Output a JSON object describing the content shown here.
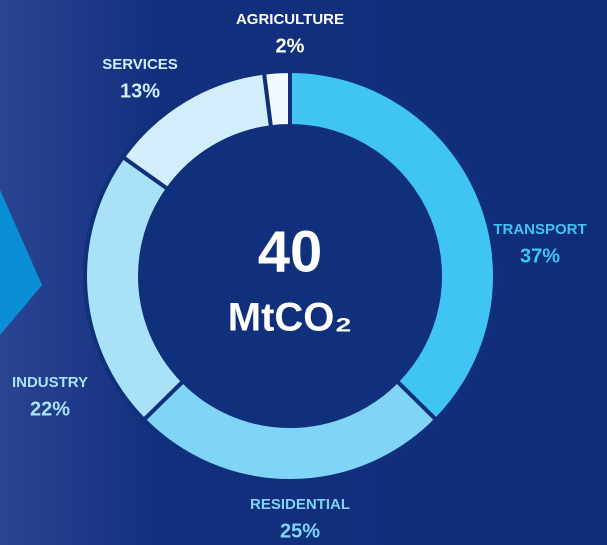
{
  "chart_data": {
    "type": "donut",
    "categories": [
      "TRANSPORT",
      "RESIDENTIAL",
      "INDUSTRY",
      "SERVICES",
      "AGRICULTURE"
    ],
    "values": [
      37,
      25,
      22,
      13,
      2
    ],
    "value_labels": [
      "37%",
      "25%",
      "22%",
      "13%",
      "2%"
    ],
    "colors": [
      "#40c4f3",
      "#80d4f6",
      "#a9e1f8",
      "#d3eefb",
      "#f3faff"
    ],
    "label_colors": [
      "#40c4f3",
      "#80d4f6",
      "#a9e1f8",
      "#d3eefb",
      "#ffffff"
    ],
    "center_value": "40",
    "center_unit": "MtCO₂"
  }
}
